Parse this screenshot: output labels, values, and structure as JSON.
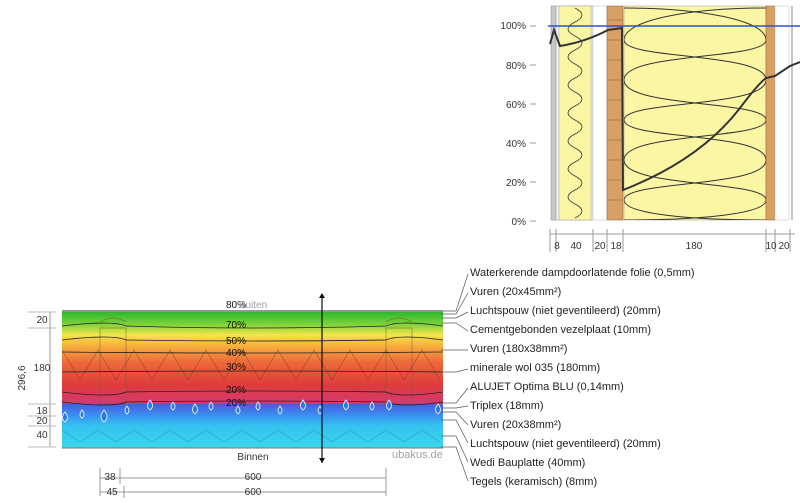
{
  "moisture_chart": {
    "y_ticks": [
      "100%",
      "80%",
      "60%",
      "40%",
      "20%",
      "0%"
    ],
    "bottom_dims": [
      "8",
      "40",
      "20",
      "18",
      "180",
      "10",
      "20"
    ]
  },
  "section": {
    "outside_label": "Buiten",
    "inside_label": "Binnen",
    "left_dims": [
      "20",
      "180",
      "18",
      "20",
      "40"
    ],
    "total_label": "296,6",
    "rh_labels": [
      "80%",
      "70%",
      "50%",
      "40%",
      "30%",
      "20%",
      "20%"
    ],
    "bottom_dims_row1": [
      "38",
      "600"
    ],
    "bottom_dims_row2": [
      "45",
      "600"
    ]
  },
  "legend": [
    "Waterkerende dampdoorlatende folie (0,5mm)",
    "Vuren (20x45mm²)",
    "Luchtspouw (niet geventileerd) (20mm)",
    "Cementgebonden vezelplaat (10mm)",
    "Vuren (180x38mm²)",
    "minerale wol 035 (180mm)",
    "ALUJET Optima BLU (0,14mm)",
    "Triplex (18mm)",
    "Vuren (20x38mm²)",
    "Luchtspouw (niet geventileerd) (20mm)",
    "Wedi Bauplatte (40mm)",
    "Tegels (keramisch) (8mm)"
  ],
  "watermark": "ubakus.de"
}
